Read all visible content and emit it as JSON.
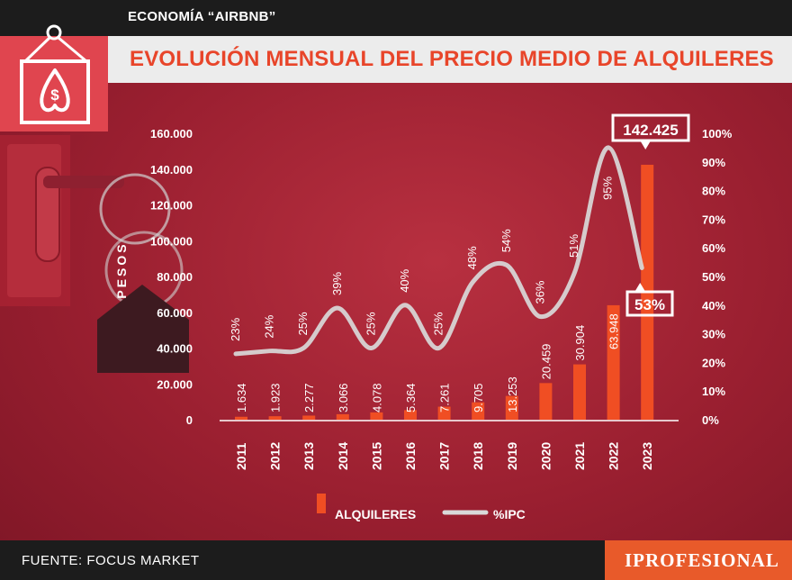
{
  "header": {
    "kicker": "ECONOMÍA “AIRBNB”",
    "title": "EVOLUCIÓN MENSUAL DEL PRECIO MEDIO DE ALQUILERES"
  },
  "footer": {
    "source": "FUENTE: FOCUS MARKET",
    "logo": "IPROFESIONAL"
  },
  "colors": {
    "bar": "#f04e23",
    "line": "#d9d9d9",
    "text": "#ffffff",
    "title": "#e8452a"
  },
  "chart_data": {
    "type": "bar",
    "title": "EVOLUCIÓN MENSUAL DEL PRECIO MEDIO DE ALQUILERES",
    "ylabel": "PESOS",
    "ylim": [
      0,
      160000
    ],
    "y2lim": [
      0,
      100
    ],
    "categories": [
      "2011",
      "2012",
      "2013",
      "2014",
      "2015",
      "2016",
      "2017",
      "2018",
      "2019",
      "2020",
      "2021",
      "2022",
      "2023"
    ],
    "series": [
      {
        "name": "ALQUILERES",
        "type": "bar",
        "values": [
          1634,
          1923,
          2277,
          3066,
          4078,
          5364,
          7261,
          9705,
          13253,
          20459,
          30904,
          63948,
          142425
        ],
        "labels": [
          "1.634",
          "1.923",
          "2.277",
          "3.066",
          "4.078",
          "5.364",
          "7.261",
          "9.705",
          "13.253",
          "20.459",
          "30.904",
          "63.948",
          "142.425"
        ]
      },
      {
        "name": "%IPC",
        "type": "line",
        "values": [
          23,
          24,
          25,
          39,
          25,
          40,
          25,
          48,
          54,
          36,
          51,
          95,
          53
        ],
        "labels": [
          "23%",
          "24%",
          "25%",
          "39%",
          "25%",
          "40%",
          "25%",
          "48%",
          "54%",
          "36%",
          "51%",
          "95%",
          "53%"
        ]
      }
    ],
    "yticks": [
      "0",
      "20.000",
      "40.000",
      "60.000",
      "80.000",
      "100.000",
      "120.000",
      "140.000",
      "160.000"
    ],
    "y2ticks": [
      "0%",
      "10%",
      "20%",
      "30%",
      "40%",
      "50%",
      "60%",
      "70%",
      "80%",
      "90%",
      "100%"
    ],
    "legend": [
      "ALQUILERES",
      "%IPC"
    ],
    "legend_position": "bottom"
  }
}
